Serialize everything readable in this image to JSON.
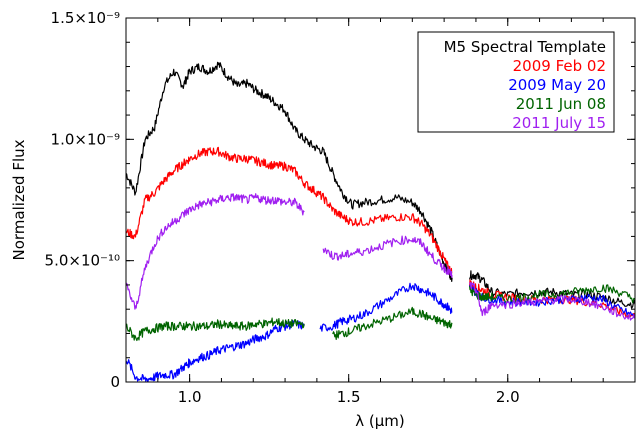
{
  "chart_data": {
    "type": "line",
    "xlabel": "λ (μm)",
    "ylabel": "Normalized Flux",
    "xlim": [
      0.8,
      2.4
    ],
    "ylim": [
      0,
      1.5e-09
    ],
    "x_ticks": [
      {
        "value": 1.0,
        "label": "1.0"
      },
      {
        "value": 1.5,
        "label": "1.5"
      },
      {
        "value": 2.0,
        "label": "2.0"
      }
    ],
    "y_ticks": [
      {
        "value": 0,
        "label": "0"
      },
      {
        "value": 5e-10,
        "label": "5.0×10⁻¹⁰"
      },
      {
        "value": 1e-09,
        "label": "1.0×10⁻⁹"
      },
      {
        "value": 1.5e-09,
        "label": "1.5×10⁻⁹"
      }
    ],
    "legend": {
      "placement": "top-right",
      "entries": [
        {
          "label": "M5 Spectral Template",
          "color": "#000000"
        },
        {
          "label": "2009 Feb 02",
          "color": "#ff0000"
        },
        {
          "label": "2009 May 20",
          "color": "#0000ff"
        },
        {
          "label": "2011 Jun 08",
          "color": "#006400"
        },
        {
          "label": "2011 July 15",
          "color": "#a020f0"
        }
      ]
    },
    "series": [
      {
        "name": "M5 Spectral Template",
        "color": "#000000",
        "points": [
          [
            0.8,
            8.6e-10
          ],
          [
            0.83,
            7.8e-10
          ],
          [
            0.86,
            1e-09
          ],
          [
            0.89,
            1.05e-09
          ],
          [
            0.92,
            1.22e-09
          ],
          [
            0.95,
            1.28e-09
          ],
          [
            0.98,
            1.22e-09
          ],
          [
            1.0,
            1.28e-09
          ],
          [
            1.03,
            1.3e-09
          ],
          [
            1.06,
            1.28e-09
          ],
          [
            1.09,
            1.31e-09
          ],
          [
            1.12,
            1.26e-09
          ],
          [
            1.15,
            1.22e-09
          ],
          [
            1.18,
            1.23e-09
          ],
          [
            1.21,
            1.2e-09
          ],
          [
            1.24,
            1.18e-09
          ],
          [
            1.27,
            1.15e-09
          ],
          [
            1.3,
            1.12e-09
          ],
          [
            1.33,
            1.04e-09
          ],
          [
            1.36,
            1e-09
          ],
          [
            1.39,
            9.7e-10
          ],
          [
            1.42,
            9.5e-10
          ],
          [
            1.45,
            8.6e-10
          ],
          [
            1.48,
            7.8e-10
          ],
          [
            1.51,
            7.3e-10
          ],
          [
            1.55,
            7.4e-10
          ],
          [
            1.6,
            7.5e-10
          ],
          [
            1.65,
            7.6e-10
          ],
          [
            1.7,
            7.4e-10
          ],
          [
            1.73,
            7e-10
          ],
          [
            1.76,
            6.2e-10
          ],
          [
            1.79,
            5.2e-10
          ],
          [
            1.81,
            4.6e-10
          ],
          [
            1.825,
            4.3e-10
          ],
          [
            null,
            null
          ],
          [
            1.88,
            4.4e-10
          ],
          [
            1.9,
            4.4e-10
          ],
          [
            1.92,
            4.2e-10
          ],
          [
            1.95,
            3.7e-10
          ],
          [
            2.0,
            3.6e-10
          ],
          [
            2.05,
            3.7e-10
          ],
          [
            2.1,
            3.7e-10
          ],
          [
            2.15,
            3.7e-10
          ],
          [
            2.2,
            3.6e-10
          ],
          [
            2.25,
            3.6e-10
          ],
          [
            2.3,
            3.5e-10
          ],
          [
            2.35,
            3.3e-10
          ],
          [
            2.4,
            3.2e-10
          ]
        ]
      },
      {
        "name": "2009 Feb 02",
        "color": "#ff0000",
        "points": [
          [
            0.8,
            6.2e-10
          ],
          [
            0.83,
            6e-10
          ],
          [
            0.86,
            7.5e-10
          ],
          [
            0.89,
            7.8e-10
          ],
          [
            0.92,
            8.3e-10
          ],
          [
            0.95,
            8.7e-10
          ],
          [
            0.98,
            9e-10
          ],
          [
            1.0,
            9.2e-10
          ],
          [
            1.03,
            9.4e-10
          ],
          [
            1.06,
            9.5e-10
          ],
          [
            1.09,
            9.5e-10
          ],
          [
            1.12,
            9.3e-10
          ],
          [
            1.15,
            9.2e-10
          ],
          [
            1.18,
            9.2e-10
          ],
          [
            1.21,
            9.1e-10
          ],
          [
            1.24,
            9e-10
          ],
          [
            1.27,
            8.9e-10
          ],
          [
            1.3,
            8.9e-10
          ],
          [
            1.33,
            8.7e-10
          ],
          [
            1.36,
            8.2e-10
          ],
          [
            1.39,
            7.9e-10
          ],
          [
            1.42,
            7.6e-10
          ],
          [
            1.45,
            7.1e-10
          ],
          [
            1.48,
            6.8e-10
          ],
          [
            1.51,
            6.6e-10
          ],
          [
            1.55,
            6.6e-10
          ],
          [
            1.6,
            6.7e-10
          ],
          [
            1.65,
            6.8e-10
          ],
          [
            1.7,
            6.8e-10
          ],
          [
            1.73,
            6.5e-10
          ],
          [
            1.76,
            6e-10
          ],
          [
            1.79,
            5.3e-10
          ],
          [
            1.81,
            4.8e-10
          ],
          [
            1.825,
            4.5e-10
          ],
          [
            null,
            null
          ],
          [
            1.88,
            4.1e-10
          ],
          [
            1.9,
            3.9e-10
          ],
          [
            1.92,
            3.8e-10
          ],
          [
            1.95,
            3.6e-10
          ],
          [
            2.0,
            3.5e-10
          ],
          [
            2.05,
            3.4e-10
          ],
          [
            2.1,
            3.4e-10
          ],
          [
            2.15,
            3.4e-10
          ],
          [
            2.2,
            3.4e-10
          ],
          [
            2.25,
            3.3e-10
          ],
          [
            2.3,
            3.2e-10
          ],
          [
            2.35,
            2.9e-10
          ],
          [
            2.4,
            2.7e-10
          ]
        ]
      },
      {
        "name": "2009 May 20",
        "color": "#0000ff",
        "points": [
          [
            0.8,
            1e-10
          ],
          [
            0.83,
            2e-11
          ],
          [
            0.86,
            1e-11
          ],
          [
            0.89,
            2e-11
          ],
          [
            0.92,
            3e-11
          ],
          [
            0.95,
            3e-11
          ],
          [
            0.98,
            6e-11
          ],
          [
            1.0,
            8e-11
          ],
          [
            1.03,
            1e-10
          ],
          [
            1.06,
            1.1e-10
          ],
          [
            1.09,
            1.3e-10
          ],
          [
            1.12,
            1.4e-10
          ],
          [
            1.15,
            1.5e-10
          ],
          [
            1.18,
            1.6e-10
          ],
          [
            1.21,
            1.8e-10
          ],
          [
            1.24,
            1.9e-10
          ],
          [
            1.27,
            2.2e-10
          ],
          [
            1.3,
            2.3e-10
          ],
          [
            1.33,
            2.4e-10
          ],
          [
            1.36,
            2.3e-10
          ],
          [
            null,
            null
          ],
          [
            1.41,
            2.2e-10
          ],
          [
            1.45,
            2.3e-10
          ],
          [
            1.48,
            2.5e-10
          ],
          [
            1.51,
            2.6e-10
          ],
          [
            1.55,
            2.8e-10
          ],
          [
            1.6,
            3.2e-10
          ],
          [
            1.65,
            3.6e-10
          ],
          [
            1.7,
            4e-10
          ],
          [
            1.73,
            3.8e-10
          ],
          [
            1.76,
            3.6e-10
          ],
          [
            1.79,
            3.3e-10
          ],
          [
            1.81,
            3.1e-10
          ],
          [
            1.825,
            2.9e-10
          ],
          [
            null,
            null
          ],
          [
            1.88,
            3.9e-10
          ],
          [
            1.9,
            3.7e-10
          ],
          [
            1.92,
            3.5e-10
          ],
          [
            1.95,
            3.4e-10
          ],
          [
            2.0,
            3.3e-10
          ],
          [
            2.05,
            3.3e-10
          ],
          [
            2.1,
            3.3e-10
          ],
          [
            2.15,
            3.4e-10
          ],
          [
            2.2,
            3.4e-10
          ],
          [
            2.25,
            3.5e-10
          ],
          [
            2.3,
            3.4e-10
          ],
          [
            2.35,
            3e-10
          ],
          [
            2.4,
            2.7e-10
          ]
        ]
      },
      {
        "name": "2011 Jun 08",
        "color": "#006400",
        "points": [
          [
            0.8,
            2.3e-10
          ],
          [
            0.83,
            1.8e-10
          ],
          [
            0.86,
            2.1e-10
          ],
          [
            0.89,
            2.2e-10
          ],
          [
            0.92,
            2.3e-10
          ],
          [
            0.95,
            2.3e-10
          ],
          [
            0.98,
            2.3e-10
          ],
          [
            1.0,
            2.3e-10
          ],
          [
            1.03,
            2.3e-10
          ],
          [
            1.06,
            2.3e-10
          ],
          [
            1.09,
            2.4e-10
          ],
          [
            1.12,
            2.3e-10
          ],
          [
            1.15,
            2.3e-10
          ],
          [
            1.18,
            2.3e-10
          ],
          [
            1.21,
            2.4e-10
          ],
          [
            1.24,
            2.4e-10
          ],
          [
            1.27,
            2.5e-10
          ],
          [
            1.3,
            2.4e-10
          ],
          [
            1.33,
            2.4e-10
          ],
          [
            1.36,
            2.4e-10
          ],
          [
            null,
            null
          ],
          [
            1.45,
            1.9e-10
          ],
          [
            1.48,
            2e-10
          ],
          [
            1.51,
            2.1e-10
          ],
          [
            1.55,
            2.3e-10
          ],
          [
            1.6,
            2.5e-10
          ],
          [
            1.65,
            2.7e-10
          ],
          [
            1.7,
            2.9e-10
          ],
          [
            1.73,
            2.8e-10
          ],
          [
            1.76,
            2.6e-10
          ],
          [
            1.79,
            2.5e-10
          ],
          [
            1.81,
            2.4e-10
          ],
          [
            1.825,
            2.4e-10
          ],
          [
            null,
            null
          ],
          [
            1.88,
            3.8e-10
          ],
          [
            1.9,
            3.6e-10
          ],
          [
            1.92,
            3.5e-10
          ],
          [
            1.95,
            3.5e-10
          ],
          [
            2.0,
            3.4e-10
          ],
          [
            2.05,
            3.5e-10
          ],
          [
            2.1,
            3.6e-10
          ],
          [
            2.15,
            3.6e-10
          ],
          [
            2.2,
            3.7e-10
          ],
          [
            2.25,
            3.8e-10
          ],
          [
            2.3,
            3.9e-10
          ],
          [
            2.35,
            3.7e-10
          ],
          [
            2.4,
            3.4e-10
          ]
        ]
      },
      {
        "name": "2011 July 15",
        "color": "#a020f0",
        "points": [
          [
            0.8,
            4e-10
          ],
          [
            0.83,
            3e-10
          ],
          [
            0.86,
            4.7e-10
          ],
          [
            0.89,
            5.7e-10
          ],
          [
            0.92,
            6.3e-10
          ],
          [
            0.95,
            6.6e-10
          ],
          [
            0.98,
            6.9e-10
          ],
          [
            1.0,
            7.1e-10
          ],
          [
            1.03,
            7.3e-10
          ],
          [
            1.06,
            7.4e-10
          ],
          [
            1.09,
            7.5e-10
          ],
          [
            1.12,
            7.6e-10
          ],
          [
            1.15,
            7.6e-10
          ],
          [
            1.18,
            7.5e-10
          ],
          [
            1.21,
            7.6e-10
          ],
          [
            1.24,
            7.5e-10
          ],
          [
            1.27,
            7.5e-10
          ],
          [
            1.3,
            7.4e-10
          ],
          [
            1.33,
            7.4e-10
          ],
          [
            1.36,
            7e-10
          ],
          [
            null,
            null
          ],
          [
            1.42,
            5.5e-10
          ],
          [
            1.45,
            5.2e-10
          ],
          [
            1.48,
            5.2e-10
          ],
          [
            1.51,
            5.3e-10
          ],
          [
            1.55,
            5.4e-10
          ],
          [
            1.6,
            5.6e-10
          ],
          [
            1.65,
            5.8e-10
          ],
          [
            1.7,
            5.9e-10
          ],
          [
            1.73,
            5.7e-10
          ],
          [
            1.76,
            5.2e-10
          ],
          [
            1.79,
            4.8e-10
          ],
          [
            1.81,
            4.6e-10
          ],
          [
            1.825,
            4.4e-10
          ],
          [
            null,
            null
          ],
          [
            1.88,
            4e-10
          ],
          [
            1.9,
            3.8e-10
          ],
          [
            1.92,
            2.8e-10
          ],
          [
            1.95,
            3.2e-10
          ],
          [
            2.0,
            3.2e-10
          ],
          [
            2.05,
            3.3e-10
          ],
          [
            2.1,
            3.3e-10
          ],
          [
            2.15,
            3.4e-10
          ],
          [
            2.2,
            3.4e-10
          ],
          [
            2.25,
            3.3e-10
          ],
          [
            2.3,
            3.1e-10
          ],
          [
            2.35,
            2.8e-10
          ],
          [
            2.4,
            2.6e-10
          ]
        ]
      }
    ]
  }
}
